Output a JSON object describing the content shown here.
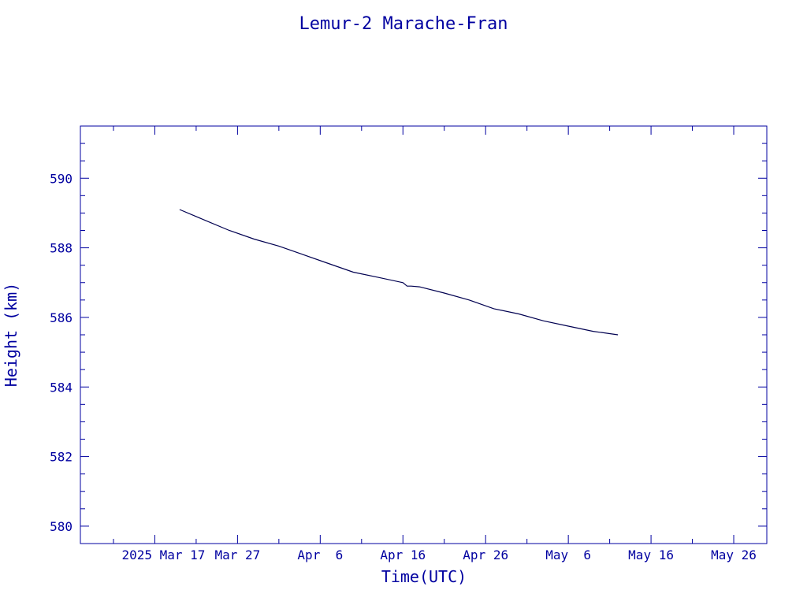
{
  "chart_data": {
    "type": "line",
    "title": "Lemur-2 Marache-Fran",
    "xlabel": "Time(UTC)",
    "ylabel": "Height (km)",
    "x_is_date": true,
    "xlim": [
      "2025-03-08",
      "2025-05-30"
    ],
    "ylim": [
      579.5,
      591.5
    ],
    "x_ticks": [
      {
        "date": "2025-03-17",
        "label": "2025 Mar 17"
      },
      {
        "date": "2025-03-27",
        "label": "Mar 27"
      },
      {
        "date": "2025-04-06",
        "label": "Apr  6"
      },
      {
        "date": "2025-04-16",
        "label": "Apr 16"
      },
      {
        "date": "2025-04-26",
        "label": "Apr 26"
      },
      {
        "date": "2025-05-06",
        "label": "May  6"
      },
      {
        "date": "2025-05-16",
        "label": "May 16"
      },
      {
        "date": "2025-05-26",
        "label": "May 26"
      }
    ],
    "y_ticks": [
      580,
      582,
      584,
      586,
      588,
      590
    ],
    "grid": false,
    "colors": {
      "axis": "#0000a0",
      "series": "#000050"
    },
    "series": [
      {
        "x": [
          "2025-03-20",
          "2025-03-23",
          "2025-03-26",
          "2025-03-29",
          "2025-04-01",
          "2025-04-04",
          "2025-04-07",
          "2025-04-10",
          "2025-04-13",
          "2025-04-16",
          "2025-04-16T12:00",
          "2025-04-17",
          "2025-04-18",
          "2025-04-21",
          "2025-04-24",
          "2025-04-27",
          "2025-04-30",
          "2025-05-03",
          "2025-05-06",
          "2025-05-09",
          "2025-05-12"
        ],
        "y": [
          589.1,
          588.8,
          588.5,
          588.25,
          588.05,
          587.8,
          587.55,
          587.3,
          587.15,
          587.0,
          586.9,
          586.9,
          586.88,
          586.7,
          586.5,
          586.25,
          586.1,
          585.9,
          585.75,
          585.6,
          585.5
        ]
      }
    ]
  }
}
